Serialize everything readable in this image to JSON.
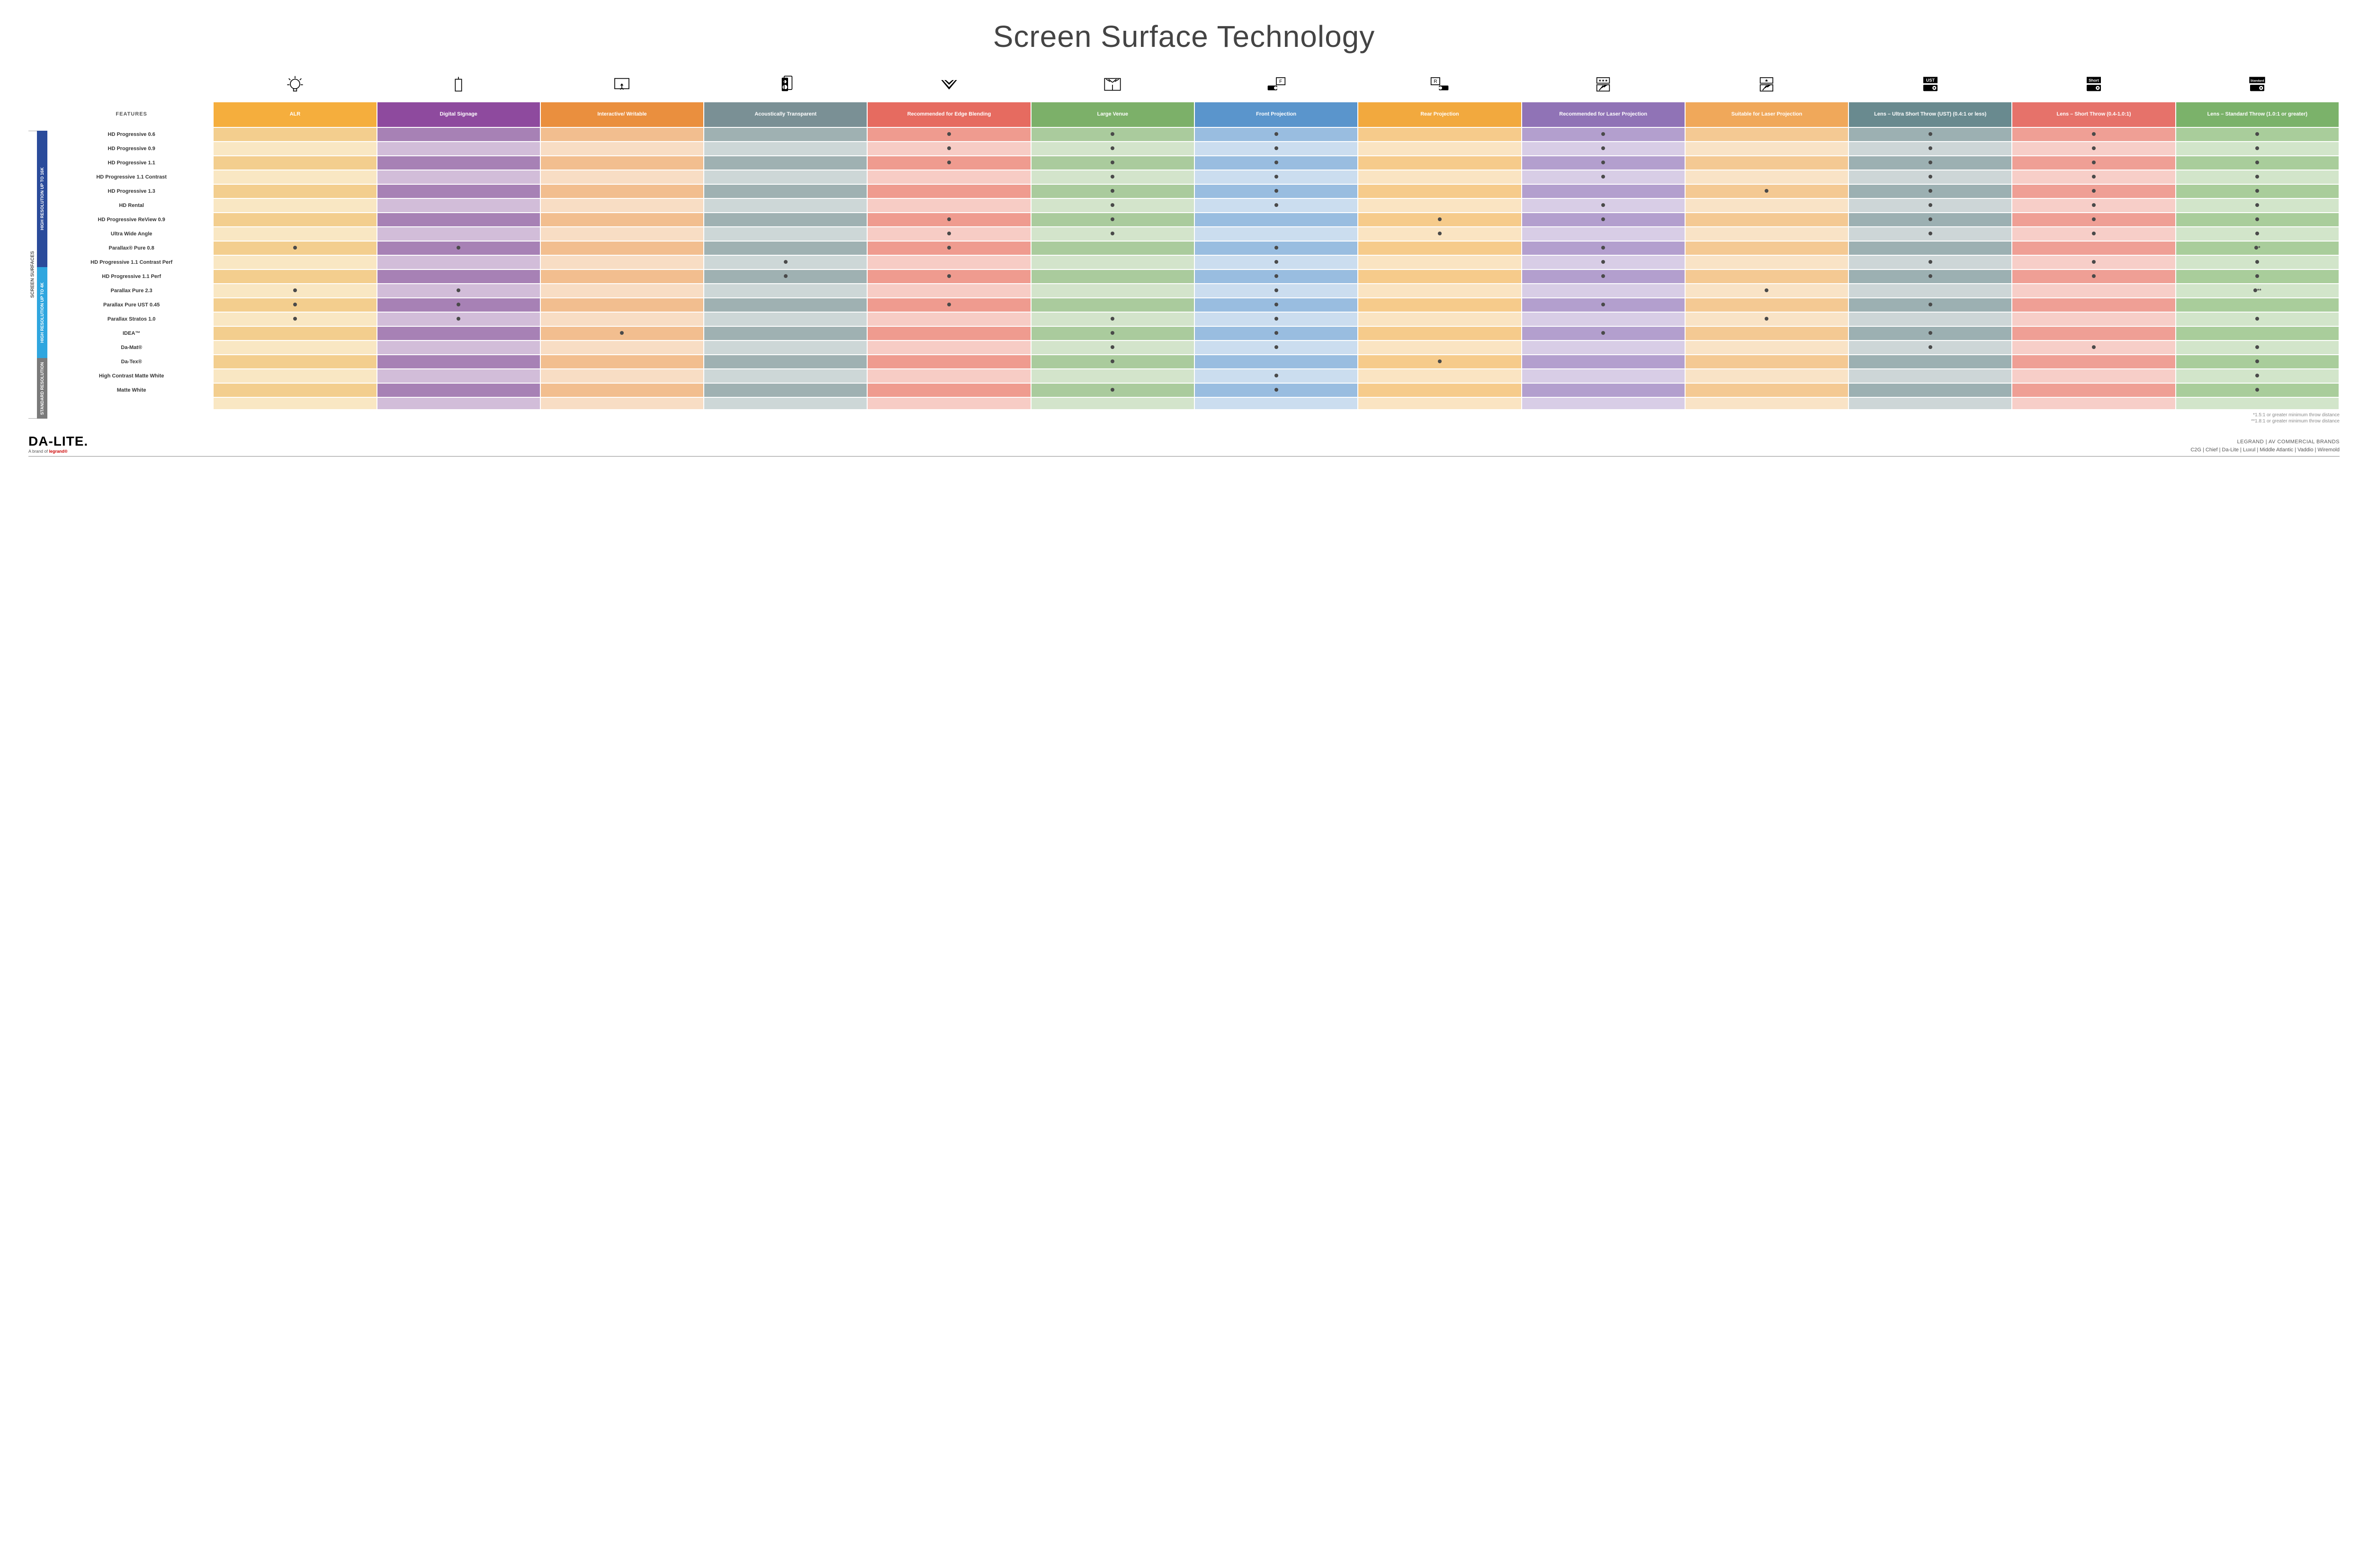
{
  "title": "Screen Surface Technology",
  "colors": {
    "header": [
      "#f5ae3d",
      "#8e4a9e",
      "#ea8f3e",
      "#7a9095",
      "#e66b60",
      "#7cb069",
      "#5a95cc",
      "#f2a93e",
      "#9073b6",
      "#f0a85a",
      "#698a8f",
      "#e6726a",
      "#7bb26a"
    ],
    "cell_dark": [
      "#f3ce8e",
      "#a781b5",
      "#f2be8f",
      "#9fb1b2",
      "#ef9b8f",
      "#aacb9d",
      "#99bde0",
      "#f6cb8b",
      "#b39fce",
      "#f4c993",
      "#9cb0b2",
      "#ef9f95",
      "#a9cd9b"
    ],
    "cell_light": [
      "#f9e7c3",
      "#d2bdd9",
      "#f8ddc4",
      "#cdd7d7",
      "#f7ccc5",
      "#d3e4cb",
      "#cbddef",
      "#fae4c2",
      "#d8cde6",
      "#f9e3c6",
      "#cdd6d7",
      "#f7cec8",
      "#d2e5ca"
    ],
    "group_bg": [
      "#2a4b9b",
      "#2fa6df",
      "#7a7a7a"
    ],
    "footnote": "#888888"
  },
  "columns": [
    {
      "label": "ALR"
    },
    {
      "label": "Digital Signage"
    },
    {
      "label": "Interactive/ Writable"
    },
    {
      "label": "Acoustically Transparent"
    },
    {
      "label": "Recommended for Edge Blending"
    },
    {
      "label": "Large Venue"
    },
    {
      "label": "Front Projection"
    },
    {
      "label": "Rear Projection"
    },
    {
      "label": "Recommended for Laser Projection"
    },
    {
      "label": "Suitable for Laser Projection"
    },
    {
      "label": "Lens – Ultra Short Throw (UST) (0.4:1 or less)"
    },
    {
      "label": "Lens – Short Throw (0.4-1.0:1)"
    },
    {
      "label": "Lens – Standard Throw (1.0:1 or greater)"
    }
  ],
  "features_label": "FEATURES",
  "side_label": "SCREEN SURFACES",
  "groups": [
    {
      "label": "HIGH RESOLUTION UP TO 16K",
      "rows": 9
    },
    {
      "label": "HIGH RESOLUTION UP TO 4K",
      "rows": 6
    },
    {
      "label": "STANDARD RESOLUTION",
      "rows": 4
    }
  ],
  "rows": [
    {
      "label": "HD Progressive 0.6",
      "cells": [
        "",
        "",
        "",
        "",
        "•",
        "•",
        "•",
        "",
        "•",
        "",
        "•",
        "•",
        "•"
      ]
    },
    {
      "label": "HD Progressive 0.9",
      "cells": [
        "",
        "",
        "",
        "",
        "•",
        "•",
        "•",
        "",
        "•",
        "",
        "•",
        "•",
        "•"
      ]
    },
    {
      "label": "HD Progressive 1.1",
      "cells": [
        "",
        "",
        "",
        "",
        "•",
        "•",
        "•",
        "",
        "•",
        "",
        "•",
        "•",
        "•"
      ]
    },
    {
      "label": "HD Progressive 1.1 Contrast",
      "cells": [
        "",
        "",
        "",
        "",
        "",
        "•",
        "•",
        "",
        "•",
        "",
        "•",
        "•",
        "•"
      ]
    },
    {
      "label": "HD Progressive 1.3",
      "cells": [
        "",
        "",
        "",
        "",
        "",
        "•",
        "•",
        "",
        "",
        "•",
        "•",
        "•",
        "•"
      ]
    },
    {
      "label": "HD Rental",
      "cells": [
        "",
        "",
        "",
        "",
        "",
        "•",
        "•",
        "",
        "•",
        "",
        "•",
        "•",
        "•"
      ]
    },
    {
      "label": "HD Progressive ReView 0.9",
      "cells": [
        "",
        "",
        "",
        "",
        "•",
        "•",
        "",
        "•",
        "•",
        "",
        "•",
        "•",
        "•"
      ]
    },
    {
      "label": "Ultra Wide Angle",
      "cells": [
        "",
        "",
        "",
        "",
        "•",
        "•",
        "",
        "•",
        "",
        "",
        "•",
        "•",
        "•"
      ]
    },
    {
      "label": "Parallax® Pure 0.8",
      "cells": [
        "•",
        "•",
        "",
        "",
        "•",
        "",
        "•",
        "",
        "•",
        "",
        "",
        "",
        "•*"
      ]
    },
    {
      "label": "HD Progressive 1.1 Contrast Perf",
      "cells": [
        "",
        "",
        "",
        "•",
        "",
        "",
        "•",
        "",
        "•",
        "",
        "•",
        "•",
        "•"
      ]
    },
    {
      "label": "HD Progressive 1.1 Perf",
      "cells": [
        "",
        "",
        "",
        "•",
        "•",
        "",
        "•",
        "",
        "•",
        "",
        "•",
        "•",
        "•"
      ]
    },
    {
      "label": "Parallax Pure 2.3",
      "cells": [
        "•",
        "•",
        "",
        "",
        "",
        "",
        "•",
        "",
        "",
        "•",
        "",
        "",
        "•**"
      ]
    },
    {
      "label": "Parallax Pure UST 0.45",
      "cells": [
        "•",
        "•",
        "",
        "",
        "•",
        "",
        "•",
        "",
        "•",
        "",
        "•",
        "",
        ""
      ]
    },
    {
      "label": "Parallax Stratos 1.0",
      "cells": [
        "•",
        "•",
        "",
        "",
        "",
        "•",
        "•",
        "",
        "",
        "•",
        "",
        "",
        "•"
      ]
    },
    {
      "label": "IDEA™",
      "cells": [
        "",
        "",
        "•",
        "",
        "",
        "•",
        "•",
        "",
        "•",
        "",
        "•",
        "",
        ""
      ]
    },
    {
      "label": "Da-Mat®",
      "cells": [
        "",
        "",
        "",
        "",
        "",
        "•",
        "•",
        "",
        "",
        "",
        "•",
        "•",
        "•"
      ]
    },
    {
      "label": "Da-Tex®",
      "cells": [
        "",
        "",
        "",
        "",
        "",
        "•",
        "",
        "•",
        "",
        "",
        "",
        "",
        "•"
      ]
    },
    {
      "label": "High Contrast Matte White",
      "cells": [
        "",
        "",
        "",
        "",
        "",
        "",
        "•",
        "",
        "",
        "",
        "",
        "",
        "•"
      ]
    },
    {
      "label": "Matte White",
      "cells": [
        "",
        "",
        "",
        "",
        "",
        "•",
        "•",
        "",
        "",
        "",
        "",
        "",
        "•"
      ]
    }
  ],
  "icons": [
    "bulb",
    "signage",
    "touch",
    "speaker",
    "blend",
    "venue",
    "front",
    "rear",
    "laser-rec",
    "laser-suit",
    "ust",
    "short",
    "standard"
  ],
  "footnotes": [
    "*1.5:1 or greater minimum throw distance",
    "**1.8:1 or greater minimum throw distance"
  ],
  "footer": {
    "brand": "DA-LITE.",
    "sub_prefix": "A brand of ",
    "sub_brand": "legrand®",
    "right_top": "LEGRAND | AV COMMERCIAL BRANDS",
    "right_bottom": "C2G  |  Chief  |  Da-Lite  |  Luxul  |  Middle Atlantic  |  Vaddio  |  Wiremold"
  }
}
